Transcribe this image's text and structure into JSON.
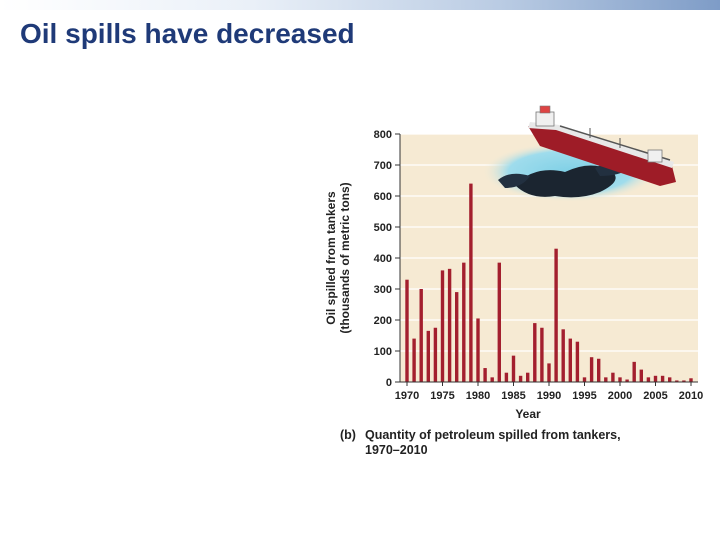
{
  "slide": {
    "title": "Oil spills have decreased"
  },
  "caption": {
    "letter": "(b)",
    "line1": "Quantity of petroleum spilled from tankers,",
    "line2": "1970–2010"
  },
  "colors": {
    "bar": "#a31f2e",
    "plot_bg": "#f6ead3",
    "grid": "#ffffff",
    "title": "#1f3a78"
  },
  "illustration": {
    "icon": "oil-tanker-spill-icon"
  },
  "chart_data": {
    "type": "bar",
    "ylabel_line1": "Oil spilled from tankers",
    "ylabel_line2": "(thousands of metric tons)",
    "xlabel": "Year",
    "ylim": [
      0,
      800
    ],
    "xlim": [
      1970,
      2010
    ],
    "yticks": [
      0,
      100,
      200,
      300,
      400,
      500,
      600,
      700,
      800
    ],
    "xticks": [
      1970,
      1975,
      1980,
      1985,
      1990,
      1995,
      2000,
      2005,
      2010
    ],
    "grid": true,
    "x": [
      1970,
      1971,
      1972,
      1973,
      1974,
      1975,
      1976,
      1977,
      1978,
      1979,
      1980,
      1981,
      1982,
      1983,
      1984,
      1985,
      1986,
      1987,
      1988,
      1989,
      1990,
      1991,
      1992,
      1993,
      1994,
      1995,
      1996,
      1997,
      1998,
      1999,
      2000,
      2001,
      2002,
      2003,
      2004,
      2005,
      2006,
      2007,
      2008,
      2009,
      2010
    ],
    "values": [
      330,
      140,
      300,
      165,
      175,
      360,
      365,
      290,
      385,
      640,
      205,
      45,
      15,
      385,
      30,
      85,
      20,
      30,
      190,
      175,
      60,
      430,
      170,
      140,
      130,
      15,
      80,
      75,
      15,
      30,
      15,
      8,
      65,
      40,
      15,
      20,
      20,
      15,
      5,
      5,
      12
    ]
  }
}
